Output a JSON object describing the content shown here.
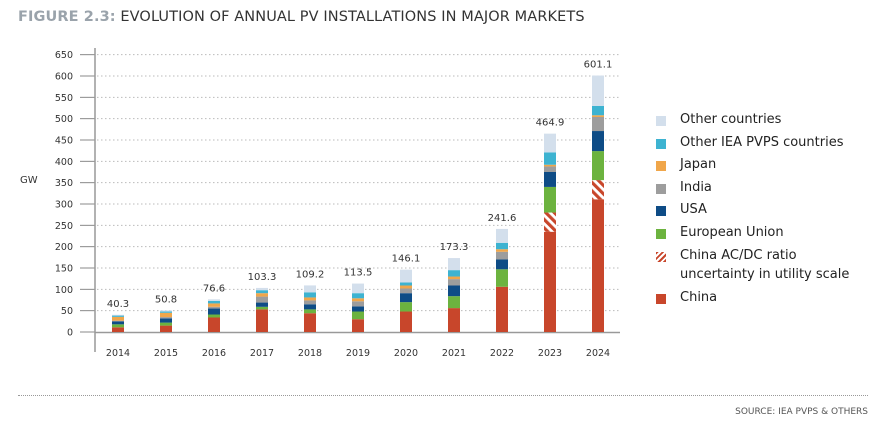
{
  "title": {
    "figure_label": "FIGURE 2.3:",
    "text": "EVOLUTION OF ANNUAL PV INSTALLATIONS IN MAJOR MARKETS"
  },
  "source": "SOURCE: IEA PVPS & OTHERS",
  "chart_data": {
    "type": "bar",
    "stacked": true,
    "ylabel": "GW",
    "ylim": [
      0,
      650
    ],
    "yticks": [
      0,
      50,
      100,
      150,
      200,
      250,
      300,
      350,
      400,
      450,
      500,
      550,
      600,
      650
    ],
    "grid": "horizontal dotted",
    "legend_position": "right",
    "categories": [
      "2014",
      "2015",
      "2016",
      "2017",
      "2018",
      "2019",
      "2020",
      "2021",
      "2022",
      "2023",
      "2024"
    ],
    "totals": [
      "40.3",
      "50.8",
      "76.6",
      "103.3",
      "109.2",
      "113.5",
      "146.1",
      "173.3",
      "241.6",
      "464.9",
      "601.1"
    ],
    "series": [
      {
        "name": "China",
        "color": "#c8462b",
        "values": [
          11,
          15,
          34,
          53,
          44,
          30,
          48,
          56,
          106,
          235,
          311
        ]
      },
      {
        "name": "China AC/DC ratio uncertainty in utility scale",
        "color": "#c8462b",
        "pattern": "hatched",
        "values": [
          0,
          0,
          0,
          0,
          0,
          0,
          0,
          0,
          0,
          45,
          45
        ]
      },
      {
        "name": "European Union",
        "color": "#6cb33f",
        "values": [
          7,
          7,
          7,
          6,
          9,
          18,
          22,
          28,
          41,
          60,
          68
        ]
      },
      {
        "name": "USA",
        "color": "#0e4c86",
        "values": [
          7,
          10,
          14,
          10,
          12,
          12,
          21,
          25,
          23,
          35,
          47
        ]
      },
      {
        "name": "India",
        "color": "#9d9d9d",
        "values": [
          1.5,
          3,
          4,
          14,
          9,
          12,
          11,
          15,
          18,
          13,
          33
        ]
      },
      {
        "name": "Japan",
        "color": "#f0a64a",
        "values": [
          9,
          10,
          8,
          8,
          7,
          7,
          7,
          6,
          6,
          4,
          4
        ]
      },
      {
        "name": "Other IEA PVPS countries",
        "color": "#3db3d1",
        "values": [
          3,
          3,
          6,
          7,
          12,
          12,
          7,
          15,
          15,
          29,
          22
        ]
      },
      {
        "name": "Other countries",
        "color": "#d3dfec",
        "values": [
          1.8,
          2.8,
          3.6,
          5.3,
          16.2,
          22.5,
          30.1,
          28.3,
          32.6,
          43.9,
          71.1
        ]
      }
    ],
    "legend": [
      {
        "label": "Other countries",
        "color": "#d3dfec"
      },
      {
        "label": "Other IEA PVPS countries",
        "color": "#3db3d1"
      },
      {
        "label": "Japan",
        "color": "#f0a64a"
      },
      {
        "label": "India",
        "color": "#9d9d9d"
      },
      {
        "label": "USA",
        "color": "#0e4c86"
      },
      {
        "label": "European Union",
        "color": "#6cb33f"
      },
      {
        "label": "China AC/DC ratio uncertainty in utility scale",
        "color": "#c8462b",
        "pattern": "hatched"
      },
      {
        "label": "China",
        "color": "#c8462b"
      }
    ]
  }
}
